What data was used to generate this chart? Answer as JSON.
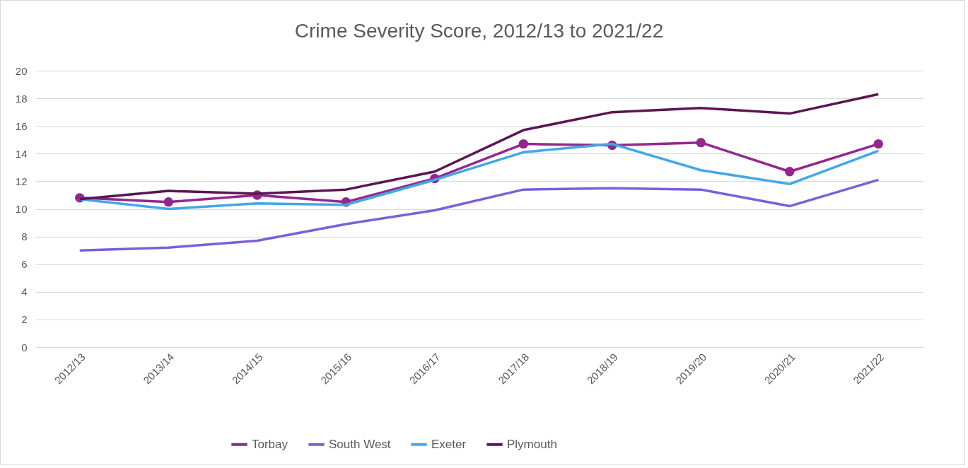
{
  "chart_data": {
    "type": "line",
    "title": "Crime Severity Score, 2012/13 to 2021/22",
    "categories": [
      "2012/13",
      "2013/14",
      "2014/15",
      "2015/16",
      "2016/17",
      "2017/18",
      "2018/19",
      "2019/20",
      "2020/21",
      "2021/22"
    ],
    "series": [
      {
        "name": "Torbay",
        "color": "#93278f",
        "marker": "circle",
        "values": [
          10.8,
          10.5,
          11.0,
          10.5,
          12.2,
          14.7,
          14.6,
          14.8,
          12.7,
          14.7
        ]
      },
      {
        "name": "South West",
        "color": "#7b5fdd",
        "values": [
          7.0,
          7.2,
          7.7,
          8.9,
          9.9,
          11.4,
          11.5,
          11.4,
          10.2,
          12.1
        ]
      },
      {
        "name": "Exeter",
        "color": "#41a8e8",
        "values": [
          10.7,
          10.0,
          10.4,
          10.3,
          12.1,
          14.1,
          14.7,
          12.8,
          11.8,
          14.2
        ]
      },
      {
        "name": "Plymouth",
        "color": "#5c1552",
        "values": [
          10.7,
          11.3,
          11.1,
          11.4,
          12.7,
          15.7,
          17.0,
          17.3,
          16.9,
          18.3
        ]
      }
    ],
    "ylim": [
      0,
      20
    ],
    "yticks": [
      0,
      2,
      4,
      6,
      8,
      10,
      12,
      14,
      16,
      18,
      20
    ],
    "grid": "y",
    "legend": "bottom"
  }
}
